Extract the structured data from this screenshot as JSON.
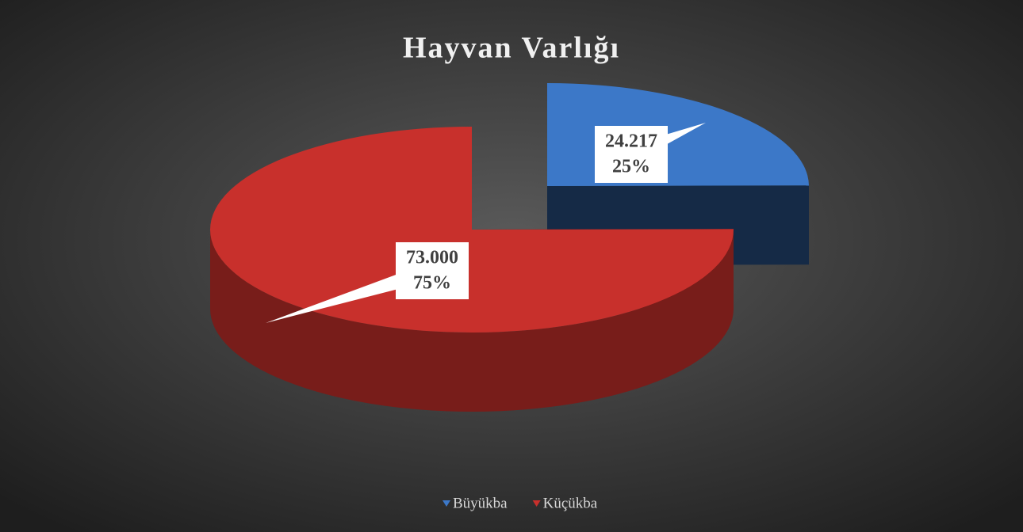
{
  "chart_data": {
    "type": "pie3d",
    "title": "Hayvan Varlığı",
    "categories": [
      "Büyükba",
      "Küçükba"
    ],
    "values": [
      24217,
      73000
    ],
    "value_labels": [
      "24.217",
      "73.000"
    ],
    "percentages": [
      25,
      75
    ],
    "percentage_labels": [
      "25%",
      "75%"
    ],
    "colors": [
      "#3c78c8",
      "#c8302c"
    ],
    "legend": "bottom"
  }
}
